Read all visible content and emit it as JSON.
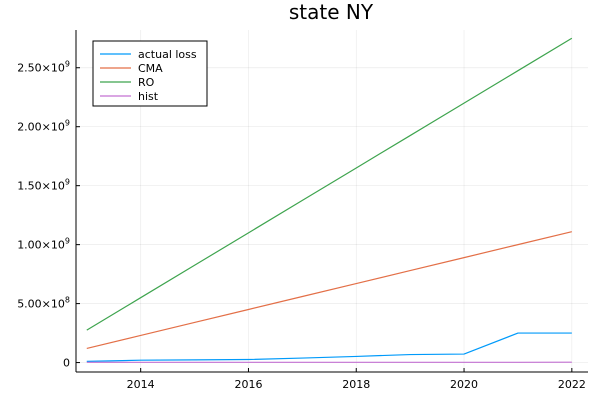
{
  "chart_data": {
    "type": "line",
    "title": "state NY",
    "xlabel": "",
    "ylabel": "",
    "x": [
      2013,
      2014,
      2015,
      2016,
      2017,
      2018,
      2019,
      2020,
      2021,
      2022
    ],
    "xlim": [
      2012.8,
      2022.3
    ],
    "ylim": [
      -80000000,
      2820000000
    ],
    "x_ticks": [
      2014,
      2016,
      2018,
      2020,
      2022
    ],
    "y_ticks": [
      {
        "value": 0,
        "mantissa": "0",
        "exponent": ""
      },
      {
        "value": 500000000,
        "mantissa": "5.00×10",
        "exponent": "8"
      },
      {
        "value": 1000000000,
        "mantissa": "1.00×10",
        "exponent": "9"
      },
      {
        "value": 1500000000,
        "mantissa": "1.50×10",
        "exponent": "9"
      },
      {
        "value": 2000000000,
        "mantissa": "2.00×10",
        "exponent": "9"
      },
      {
        "value": 2500000000,
        "mantissa": "2.50×10",
        "exponent": "9"
      }
    ],
    "grid": true,
    "legend_position": "top-left",
    "series": [
      {
        "name": "actual loss",
        "color": "#009AFA",
        "values": [
          10000000,
          20000000,
          23000000,
          26000000,
          38000000,
          52000000,
          68000000,
          72000000,
          250000000,
          250000000
        ]
      },
      {
        "name": "CMA",
        "color": "#E36F47",
        "values": [
          120000000,
          230000000,
          340000000,
          450000000,
          560000000,
          670000000,
          780000000,
          890000000,
          1000000000,
          1110000000
        ]
      },
      {
        "name": "RO",
        "color": "#3EA44E",
        "values": [
          275000000,
          550000000,
          825000000,
          1100000000,
          1375000000,
          1650000000,
          1925000000,
          2200000000,
          2475000000,
          2750000000
        ]
      },
      {
        "name": "hist",
        "color": "#C371D2",
        "values": [
          2000000,
          2000000,
          2000000,
          2000000,
          2000000,
          2000000,
          2000000,
          2000000,
          2000000,
          3000000
        ]
      }
    ]
  }
}
